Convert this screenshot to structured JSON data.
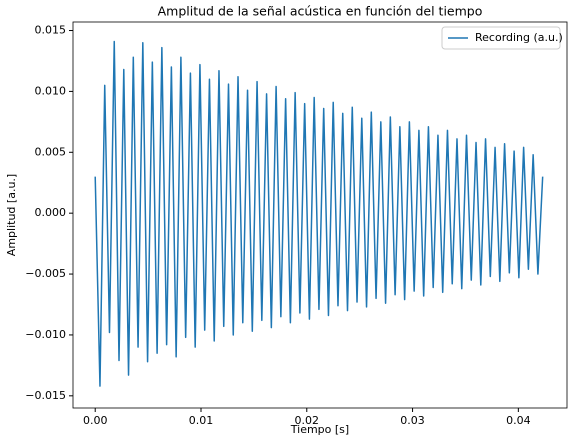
{
  "chart_data": {
    "type": "line",
    "title": "Amplitud de la señal acústica en función del tiempo",
    "x_label": "Tiempo [s]",
    "y_label": "Amplitud [a.u.]",
    "legend": "upper right",
    "xlim": [
      -0.0021,
      0.0446
    ],
    "xticks": [
      {
        "value": 0,
        "label": "0.00"
      },
      0.01,
      0.02,
      0.03,
      0.04
    ],
    "ylim": [
      -0.016,
      0.0157
    ],
    "yticks": [
      {
        "value": -0.015,
        "label": "−0.015"
      },
      {
        "value": -0.01,
        "label": "−0.010"
      },
      {
        "value": -0.005,
        "label": "−0.005"
      },
      {
        "value": 0,
        "label": "0.000"
      },
      {
        "value": 0.005,
        "label": "0.005"
      },
      {
        "value": 0.01,
        "label": "0.010"
      },
      {
        "value": 0.015,
        "label": "0.015"
      }
    ],
    "x": [
      0,
      0.00045,
      0.0009,
      0.00135,
      0.0018,
      0.00225,
      0.0027,
      0.00315,
      0.0036,
      0.00405,
      0.0045,
      0.00495,
      0.0054,
      0.00585,
      0.0063,
      0.00675,
      0.0072,
      0.00765,
      0.0081,
      0.00855,
      0.009,
      0.00945,
      0.0099,
      0.01035,
      0.0108,
      0.01125,
      0.0117,
      0.01215,
      0.0126,
      0.01305,
      0.0135,
      0.01395,
      0.0144,
      0.01485,
      0.0153,
      0.01575,
      0.0162,
      0.01665,
      0.0171,
      0.01755,
      0.018,
      0.01845,
      0.0189,
      0.01935,
      0.0198,
      0.02025,
      0.0207,
      0.02115,
      0.0216,
      0.02205,
      0.0225,
      0.02295,
      0.0234,
      0.02385,
      0.0243,
      0.02475,
      0.0252,
      0.02565,
      0.0261,
      0.02655,
      0.027,
      0.02745,
      0.0279,
      0.02835,
      0.0288,
      0.02925,
      0.0297,
      0.03015,
      0.0306,
      0.03105,
      0.0315,
      0.03195,
      0.0324,
      0.03285,
      0.0333,
      0.03375,
      0.0342,
      0.03465,
      0.0351,
      0.03555,
      0.036,
      0.03645,
      0.0369,
      0.03735,
      0.0378,
      0.03825,
      0.0387,
      0.03915,
      0.0396,
      0.04005,
      0.0405,
      0.04095,
      0.0414,
      0.04185,
      0.0423
    ],
    "series": [
      {
        "name": "Recording (a.u.)",
        "color": "#1f77b4",
        "values": [
          0.003,
          -0.0142,
          0.0105,
          -0.0098,
          0.0141,
          -0.0121,
          0.0118,
          -0.0133,
          0.0128,
          -0.011,
          0.014,
          -0.0122,
          0.0124,
          -0.0115,
          0.0136,
          -0.0108,
          0.012,
          -0.0118,
          0.0128,
          -0.0102,
          0.0115,
          -0.011,
          0.0122,
          -0.0096,
          0.011,
          -0.0105,
          0.0117,
          -0.0093,
          0.0106,
          -0.01,
          0.0112,
          -0.009,
          0.0101,
          -0.0097,
          0.0108,
          -0.0088,
          0.0098,
          -0.0094,
          0.0104,
          -0.0085,
          0.0094,
          -0.009,
          0.0099,
          -0.0082,
          0.009,
          -0.0087,
          0.0095,
          -0.0079,
          0.0086,
          -0.0084,
          0.0091,
          -0.0076,
          0.0082,
          -0.008,
          0.0087,
          -0.0073,
          0.0078,
          -0.0077,
          0.0083,
          -0.007,
          0.0075,
          -0.0074,
          0.0079,
          -0.0067,
          0.0071,
          -0.0071,
          0.0075,
          -0.0064,
          0.0068,
          -0.0068,
          0.0071,
          -0.0061,
          0.0064,
          -0.0065,
          0.0068,
          -0.0058,
          0.0061,
          -0.0062,
          0.0064,
          -0.0055,
          0.0058,
          -0.0059,
          0.0061,
          -0.0052,
          0.0054,
          -0.0056,
          0.0057,
          -0.0049,
          0.0051,
          -0.0053,
          0.0054,
          -0.0046,
          0.0048,
          -0.005,
          0.003
        ]
      }
    ]
  }
}
